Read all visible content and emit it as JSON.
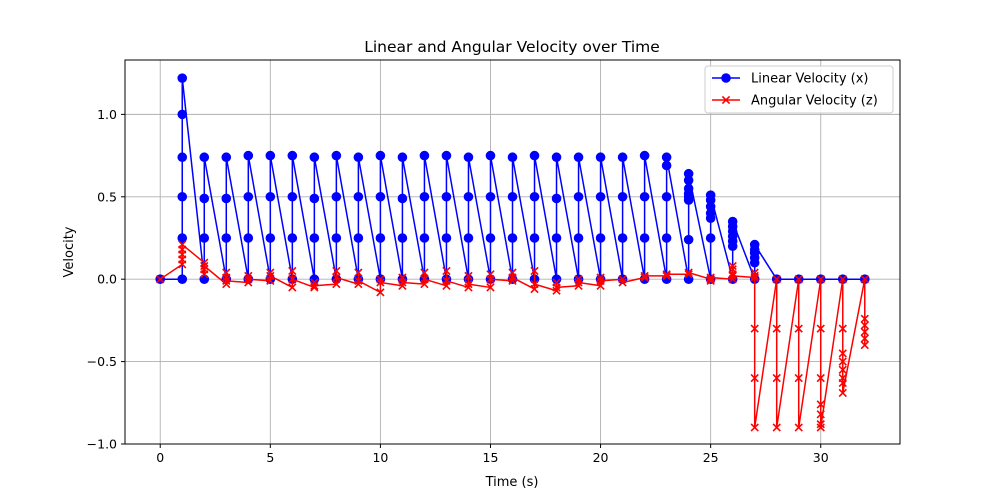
{
  "chart_data": {
    "type": "line",
    "title": "Linear and Angular Velocity over Time",
    "xlabel": "Time (s)",
    "ylabel": "Velocity",
    "xlim": [
      -1.6,
      33.6
    ],
    "ylim": [
      -1.0,
      1.33
    ],
    "xticks": [
      0,
      5,
      10,
      15,
      20,
      25,
      30
    ],
    "yticks": [
      -1.0,
      -0.5,
      0.0,
      0.5,
      1.0
    ],
    "xtick_labels": [
      "0",
      "5",
      "10",
      "15",
      "20",
      "25",
      "30"
    ],
    "ytick_labels": [
      "−1.0",
      "−0.5",
      "0.0",
      "0.5",
      "1.0"
    ],
    "grid": true,
    "legend_position": "top-right",
    "series": [
      {
        "name": "Linear Velocity (x)",
        "color": "#0000ff",
        "marker": "circle",
        "points": [
          [
            0,
            0
          ],
          [
            1,
            0
          ],
          [
            1,
            0.25
          ],
          [
            1,
            0.5
          ],
          [
            1,
            0.74
          ],
          [
            1,
            1.0
          ],
          [
            1,
            1.22
          ],
          [
            2,
            0
          ],
          [
            2,
            0.25
          ],
          [
            2,
            0.49
          ],
          [
            2,
            0.74
          ],
          [
            3,
            0
          ],
          [
            3,
            0.25
          ],
          [
            3,
            0.49
          ],
          [
            3,
            0.74
          ],
          [
            4,
            0
          ],
          [
            4,
            0.25
          ],
          [
            4,
            0.5
          ],
          [
            4,
            0.75
          ],
          [
            5,
            0
          ],
          [
            5,
            0.25
          ],
          [
            5,
            0.5
          ],
          [
            5,
            0.75
          ],
          [
            6,
            0
          ],
          [
            6,
            0.25
          ],
          [
            6,
            0.5
          ],
          [
            6,
            0.75
          ],
          [
            7,
            0
          ],
          [
            7,
            0.25
          ],
          [
            7,
            0.49
          ],
          [
            7,
            0.74
          ],
          [
            8,
            0
          ],
          [
            8,
            0.25
          ],
          [
            8,
            0.5
          ],
          [
            8,
            0.75
          ],
          [
            9,
            0
          ],
          [
            9,
            0.25
          ],
          [
            9,
            0.5
          ],
          [
            9,
            0.74
          ],
          [
            10,
            0
          ],
          [
            10,
            0.25
          ],
          [
            10,
            0.5
          ],
          [
            10,
            0.75
          ],
          [
            11,
            0
          ],
          [
            11,
            0.25
          ],
          [
            11,
            0.49
          ],
          [
            11,
            0.74
          ],
          [
            12,
            0
          ],
          [
            12,
            0.25
          ],
          [
            12,
            0.5
          ],
          [
            12,
            0.75
          ],
          [
            13,
            0
          ],
          [
            13,
            0.25
          ],
          [
            13,
            0.5
          ],
          [
            13,
            0.75
          ],
          [
            14,
            0
          ],
          [
            14,
            0.25
          ],
          [
            14,
            0.5
          ],
          [
            14,
            0.74
          ],
          [
            15,
            0
          ],
          [
            15,
            0.25
          ],
          [
            15,
            0.5
          ],
          [
            15,
            0.75
          ],
          [
            16,
            0
          ],
          [
            16,
            0.25
          ],
          [
            16,
            0.5
          ],
          [
            16,
            0.74
          ],
          [
            17,
            0
          ],
          [
            17,
            0.25
          ],
          [
            17,
            0.5
          ],
          [
            17,
            0.75
          ],
          [
            18,
            0
          ],
          [
            18,
            0.25
          ],
          [
            18,
            0.49
          ],
          [
            18,
            0.74
          ],
          [
            19,
            0
          ],
          [
            19,
            0.25
          ],
          [
            19,
            0.5
          ],
          [
            19,
            0.74
          ],
          [
            20,
            0
          ],
          [
            20,
            0.25
          ],
          [
            20,
            0.5
          ],
          [
            20,
            0.74
          ],
          [
            21,
            0
          ],
          [
            21,
            0.25
          ],
          [
            21,
            0.5
          ],
          [
            21,
            0.74
          ],
          [
            22,
            0
          ],
          [
            22,
            0.25
          ],
          [
            22,
            0.5
          ],
          [
            22,
            0.75
          ],
          [
            23,
            0
          ],
          [
            23,
            0.25
          ],
          [
            23,
            0.5
          ],
          [
            23,
            0.69
          ],
          [
            23,
            0.74
          ],
          [
            24,
            0
          ],
          [
            24,
            0.24
          ],
          [
            24,
            0.48
          ],
          [
            24,
            0.5
          ],
          [
            24,
            0.52
          ],
          [
            24,
            0.55
          ],
          [
            24,
            0.6
          ],
          [
            24,
            0.64
          ],
          [
            25,
            0
          ],
          [
            25,
            0.25
          ],
          [
            25,
            0.37
          ],
          [
            25,
            0.4
          ],
          [
            25,
            0.44
          ],
          [
            25,
            0.48
          ],
          [
            25,
            0.51
          ],
          [
            26,
            0
          ],
          [
            26,
            0.2
          ],
          [
            26,
            0.23
          ],
          [
            26,
            0.26
          ],
          [
            26,
            0.29
          ],
          [
            26,
            0.32
          ],
          [
            26,
            0.35
          ],
          [
            27,
            0
          ],
          [
            27,
            0.1
          ],
          [
            27,
            0.13
          ],
          [
            27,
            0.16
          ],
          [
            27,
            0.18
          ],
          [
            27,
            0.21
          ],
          [
            28,
            0
          ],
          [
            29,
            0
          ],
          [
            30,
            0
          ],
          [
            31,
            0
          ],
          [
            32,
            0
          ]
        ]
      },
      {
        "name": "Angular Velocity (z)",
        "color": "#ff0000",
        "marker": "x",
        "points": [
          [
            0,
            0
          ],
          [
            1,
            0.09
          ],
          [
            1,
            0.12
          ],
          [
            1,
            0.15
          ],
          [
            1,
            0.18
          ],
          [
            1,
            0.21
          ],
          [
            2,
            0.1
          ],
          [
            2,
            0.06
          ],
          [
            2,
            0.03
          ],
          [
            2,
            0.08
          ],
          [
            3,
            -0.03
          ],
          [
            3,
            0.01
          ],
          [
            3,
            0.04
          ],
          [
            3,
            -0.01
          ],
          [
            4,
            -0.02
          ],
          [
            4,
            0.02
          ],
          [
            4,
            0.0
          ],
          [
            5,
            -0.01
          ],
          [
            5,
            0.04
          ],
          [
            5,
            0.02
          ],
          [
            6,
            -0.05
          ],
          [
            6,
            0.05
          ],
          [
            6,
            0.0
          ],
          [
            7,
            -0.05
          ],
          [
            7,
            -0.02
          ],
          [
            7,
            -0.04
          ],
          [
            8,
            -0.03
          ],
          [
            8,
            0.05
          ],
          [
            8,
            0.01
          ],
          [
            9,
            -0.03
          ],
          [
            9,
            0.04
          ],
          [
            9,
            -0.01
          ],
          [
            10,
            -0.08
          ],
          [
            10,
            0.0
          ],
          [
            10,
            -0.02
          ],
          [
            11,
            -0.04
          ],
          [
            11,
            0.01
          ],
          [
            11,
            -0.02
          ],
          [
            12,
            -0.03
          ],
          [
            12,
            0.04
          ],
          [
            12,
            0.0
          ],
          [
            13,
            -0.04
          ],
          [
            13,
            0.05
          ],
          [
            13,
            -0.01
          ],
          [
            14,
            -0.05
          ],
          [
            14,
            0.02
          ],
          [
            14,
            -0.03
          ],
          [
            15,
            -0.05
          ],
          [
            15,
            0.03
          ],
          [
            15,
            0.0
          ],
          [
            16,
            -0.01
          ],
          [
            16,
            0.04
          ],
          [
            16,
            0.01
          ],
          [
            17,
            -0.06
          ],
          [
            17,
            0.05
          ],
          [
            17,
            -0.03
          ],
          [
            18,
            -0.07
          ],
          [
            18,
            -0.02
          ],
          [
            18,
            -0.05
          ],
          [
            19,
            -0.04
          ],
          [
            19,
            0.0
          ],
          [
            19,
            -0.02
          ],
          [
            20,
            -0.04
          ],
          [
            20,
            0.01
          ],
          [
            20,
            -0.01
          ],
          [
            21,
            0.0
          ],
          [
            21,
            -0.02
          ],
          [
            22,
            0.01
          ],
          [
            22,
            0.02
          ],
          [
            23,
            0.02
          ],
          [
            23,
            0.03
          ],
          [
            24,
            0.03
          ],
          [
            24,
            0.04
          ],
          [
            25,
            0.0
          ],
          [
            25,
            -0.01
          ],
          [
            25,
            0.01
          ],
          [
            26,
            0.0
          ],
          [
            26,
            0.03
          ],
          [
            26,
            0.06
          ],
          [
            26,
            0.08
          ],
          [
            26,
            0.02
          ],
          [
            27,
            0.01
          ],
          [
            27,
            0.02
          ],
          [
            27,
            0.04
          ],
          [
            27,
            -0.3
          ],
          [
            27,
            -0.6
          ],
          [
            27,
            -0.9
          ],
          [
            28,
            0.0
          ],
          [
            28,
            -0.3
          ],
          [
            28,
            -0.6
          ],
          [
            28,
            -0.9
          ],
          [
            29,
            0.0
          ],
          [
            29,
            -0.3
          ],
          [
            29,
            -0.6
          ],
          [
            29,
            -0.9
          ],
          [
            30,
            0.0
          ],
          [
            30,
            -0.3
          ],
          [
            30,
            -0.6
          ],
          [
            30,
            -0.76
          ],
          [
            30,
            -0.82
          ],
          [
            30,
            -0.88
          ],
          [
            30,
            -0.9
          ],
          [
            31,
            0.0
          ],
          [
            31,
            -0.3
          ],
          [
            31,
            -0.45
          ],
          [
            31,
            -0.5
          ],
          [
            31,
            -0.55
          ],
          [
            31,
            -0.6
          ],
          [
            31,
            -0.63
          ],
          [
            31,
            -0.69
          ],
          [
            32,
            0.0
          ],
          [
            32,
            -0.24
          ],
          [
            32,
            -0.28
          ],
          [
            32,
            -0.32
          ],
          [
            32,
            -0.36
          ],
          [
            32,
            -0.4
          ]
        ]
      }
    ]
  }
}
